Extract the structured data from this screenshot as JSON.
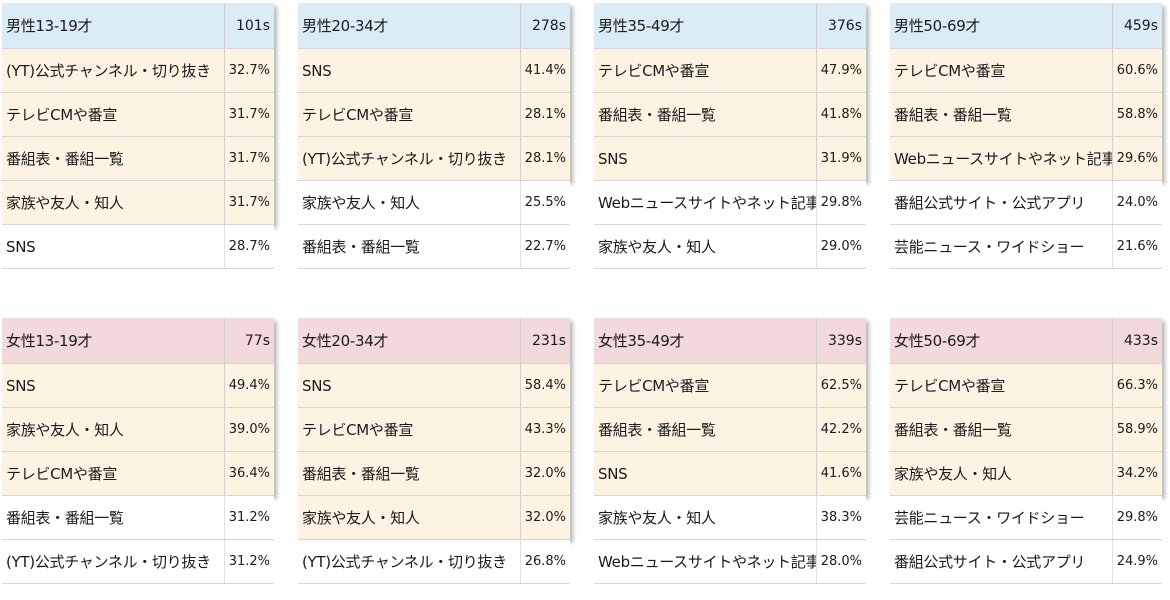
{
  "colors": {
    "male_header": "#dcecf6",
    "female_header": "#f2d9dc",
    "top_row": "#fcf3e2",
    "plain_row": "#ffffff"
  },
  "panels": [
    {
      "title": "男性13-19才",
      "n": "101s",
      "gender": "male",
      "rows": [
        {
          "label": "(YT)公式チャンネル・切り抜き",
          "value": "32.7%"
        },
        {
          "label": "テレビCMや番宣",
          "value": "31.7%"
        },
        {
          "label": "番組表・番組一覧",
          "value": "31.7%"
        },
        {
          "label": "家族や友人・知人",
          "value": "31.7%"
        },
        {
          "label": "SNS",
          "value": "28.7%"
        }
      ]
    },
    {
      "title": "男性20-34才",
      "n": "278s",
      "gender": "male",
      "rows": [
        {
          "label": "SNS",
          "value": "41.4%"
        },
        {
          "label": "テレビCMや番宣",
          "value": "28.1%"
        },
        {
          "label": "(YT)公式チャンネル・切り抜き",
          "value": "28.1%"
        },
        {
          "label": "家族や友人・知人",
          "value": "25.5%"
        },
        {
          "label": "番組表・番組一覧",
          "value": "22.7%"
        }
      ]
    },
    {
      "title": "男性35-49才",
      "n": "376s",
      "gender": "male",
      "rows": [
        {
          "label": "テレビCMや番宣",
          "value": "47.9%"
        },
        {
          "label": "番組表・番組一覧",
          "value": "41.8%"
        },
        {
          "label": "SNS",
          "value": "31.9%"
        },
        {
          "label": "Webニュースサイトやネット記事",
          "value": "29.8%"
        },
        {
          "label": "家族や友人・知人",
          "value": "29.0%"
        }
      ]
    },
    {
      "title": "男性50-69才",
      "n": "459s",
      "gender": "male",
      "rows": [
        {
          "label": "テレビCMや番宣",
          "value": "60.6%"
        },
        {
          "label": "番組表・番組一覧",
          "value": "58.8%"
        },
        {
          "label": "Webニュースサイトやネット記事",
          "value": "29.6%"
        },
        {
          "label": "番組公式サイト・公式アプリ",
          "value": "24.0%"
        },
        {
          "label": "芸能ニュース・ワイドショー",
          "value": "21.6%"
        }
      ]
    },
    {
      "title": "女性13-19才",
      "n": "77s",
      "gender": "female",
      "rows": [
        {
          "label": "SNS",
          "value": "49.4%"
        },
        {
          "label": "家族や友人・知人",
          "value": "39.0%"
        },
        {
          "label": "テレビCMや番宣",
          "value": "36.4%"
        },
        {
          "label": "番組表・番組一覧",
          "value": "31.2%"
        },
        {
          "label": "(YT)公式チャンネル・切り抜き",
          "value": "31.2%"
        }
      ]
    },
    {
      "title": "女性20-34才",
      "n": "231s",
      "gender": "female",
      "rows": [
        {
          "label": "SNS",
          "value": "58.4%"
        },
        {
          "label": "テレビCMや番宣",
          "value": "43.3%"
        },
        {
          "label": "番組表・番組一覧",
          "value": "32.0%"
        },
        {
          "label": "家族や友人・知人",
          "value": "32.0%"
        },
        {
          "label": "(YT)公式チャンネル・切り抜き",
          "value": "26.8%"
        }
      ]
    },
    {
      "title": "女性35-49才",
      "n": "339s",
      "gender": "female",
      "rows": [
        {
          "label": "テレビCMや番宣",
          "value": "62.5%"
        },
        {
          "label": "番組表・番組一覧",
          "value": "42.2%"
        },
        {
          "label": "SNS",
          "value": "41.6%"
        },
        {
          "label": "家族や友人・知人",
          "value": "38.3%"
        },
        {
          "label": "Webニュースサイトやネット記事",
          "value": "28.0%"
        }
      ]
    },
    {
      "title": "女性50-69才",
      "n": "433s",
      "gender": "female",
      "rows": [
        {
          "label": "テレビCMや番宣",
          "value": "66.3%"
        },
        {
          "label": "番組表・番組一覧",
          "value": "58.9%"
        },
        {
          "label": "家族や友人・知人",
          "value": "34.2%"
        },
        {
          "label": "芸能ニュース・ワイドショー",
          "value": "29.8%"
        },
        {
          "label": "番組公式サイト・公式アプリ",
          "value": "24.9%"
        }
      ]
    }
  ]
}
